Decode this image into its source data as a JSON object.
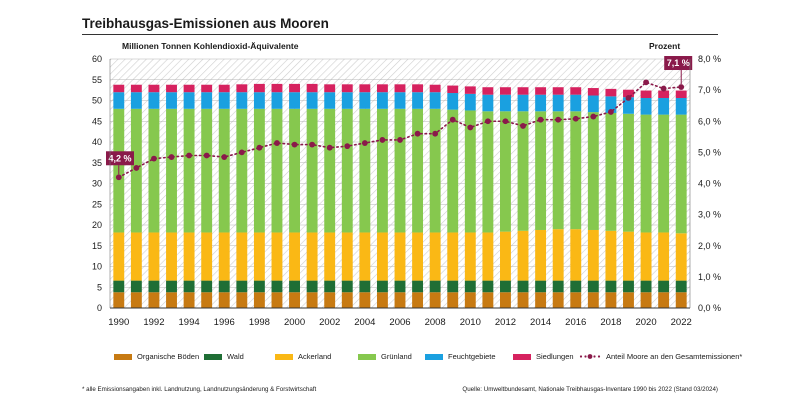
{
  "title": "Treibhausgas-Emissionen aus Mooren",
  "chart_data": {
    "type": "bar",
    "stacked": true,
    "y_left_label": "Millionen Tonnen Kohlendioxid-Äquivalente",
    "y_right_label": "Prozent",
    "ylim_left": [
      0,
      60
    ],
    "yticks_left": [
      "0",
      "5",
      "10",
      "15",
      "20",
      "25",
      "30",
      "35",
      "40",
      "45",
      "50",
      "55",
      "60"
    ],
    "ylim_right": [
      0,
      8
    ],
    "yticks_right": [
      "0,0 %",
      "1,0 %",
      "2,0 %",
      "3,0 %",
      "4,0 %",
      "5,0 %",
      "6,0 %",
      "7,0 %",
      "8,0 %"
    ],
    "years": [
      1990,
      1991,
      1992,
      1993,
      1994,
      1995,
      1996,
      1997,
      1998,
      1999,
      2000,
      2001,
      2002,
      2003,
      2004,
      2005,
      2006,
      2007,
      2008,
      2009,
      2010,
      2011,
      2012,
      2013,
      2014,
      2015,
      2016,
      2017,
      2018,
      2019,
      2020,
      2021,
      2022
    ],
    "xtick_labels": [
      "1990",
      "1992",
      "1994",
      "1996",
      "1998",
      "2000",
      "2002",
      "2004",
      "2006",
      "2008",
      "2010",
      "2012",
      "2014",
      "2016",
      "2018",
      "2020",
      "2022"
    ],
    "series": [
      {
        "name": "Organische Böden",
        "color": "#c77a12",
        "values": [
          3.8,
          3.8,
          3.8,
          3.8,
          3.8,
          3.8,
          3.8,
          3.8,
          3.8,
          3.8,
          3.8,
          3.8,
          3.8,
          3.8,
          3.8,
          3.8,
          3.8,
          3.8,
          3.8,
          3.8,
          3.8,
          3.8,
          3.8,
          3.8,
          3.8,
          3.8,
          3.8,
          3.8,
          3.8,
          3.8,
          3.8,
          3.8,
          3.8
        ]
      },
      {
        "name": "Wald",
        "color": "#1f6e35",
        "values": [
          2.8,
          2.8,
          2.8,
          2.8,
          2.8,
          2.8,
          2.8,
          2.8,
          2.8,
          2.8,
          2.8,
          2.8,
          2.8,
          2.8,
          2.8,
          2.8,
          2.8,
          2.8,
          2.8,
          2.8,
          2.8,
          2.8,
          2.8,
          2.8,
          2.8,
          2.8,
          2.8,
          2.8,
          2.8,
          2.8,
          2.8,
          2.8,
          2.8
        ]
      },
      {
        "name": "Ackerland",
        "color": "#fab815",
        "values": [
          11.6,
          11.6,
          11.6,
          11.6,
          11.6,
          11.6,
          11.6,
          11.6,
          11.6,
          11.6,
          11.6,
          11.6,
          11.6,
          11.6,
          11.6,
          11.6,
          11.6,
          11.6,
          11.6,
          11.6,
          11.6,
          11.6,
          11.8,
          12.0,
          12.2,
          12.4,
          12.4,
          12.2,
          12.0,
          11.8,
          11.6,
          11.6,
          11.4
        ]
      },
      {
        "name": "Grünland",
        "color": "#86c84e",
        "values": [
          29.8,
          29.8,
          29.8,
          29.8,
          29.8,
          29.8,
          29.8,
          29.8,
          29.8,
          29.8,
          29.8,
          29.8,
          29.8,
          29.8,
          29.8,
          29.8,
          29.8,
          29.8,
          29.8,
          29.6,
          29.4,
          29.2,
          29.0,
          28.8,
          28.6,
          28.4,
          28.4,
          28.4,
          28.4,
          28.4,
          28.4,
          28.4,
          28.6
        ]
      },
      {
        "name": "Feuchtgebiete",
        "color": "#1aa0e0",
        "values": [
          4.0,
          4.0,
          4.0,
          4.0,
          4.0,
          4.0,
          4.0,
          4.0,
          4.0,
          4.0,
          4.0,
          4.0,
          4.0,
          4.0,
          4.0,
          4.0,
          4.0,
          4.0,
          4.0,
          4.0,
          4.0,
          4.0,
          4.0,
          4.0,
          4.0,
          4.0,
          4.0,
          4.0,
          4.0,
          4.0,
          4.0,
          4.0,
          4.0
        ]
      },
      {
        "name": "Siedlungen",
        "color": "#d6225f",
        "values": [
          1.8,
          1.8,
          1.8,
          1.8,
          1.8,
          1.8,
          1.8,
          1.9,
          2.0,
          2.0,
          2.0,
          2.0,
          1.9,
          1.9,
          1.9,
          1.9,
          1.9,
          1.9,
          1.8,
          1.8,
          1.8,
          1.8,
          1.8,
          1.8,
          1.8,
          1.8,
          1.8,
          1.8,
          1.8,
          1.8,
          1.8,
          1.8,
          1.8
        ]
      }
    ],
    "line": {
      "name": "Anteil Moore an den Gesamtemissionen*",
      "color": "#8a1a4a",
      "axis": "right",
      "values": [
        4.2,
        4.5,
        4.8,
        4.85,
        4.9,
        4.9,
        4.85,
        5.0,
        5.15,
        5.3,
        5.25,
        5.25,
        5.15,
        5.2,
        5.3,
        5.4,
        5.4,
        5.6,
        5.6,
        6.05,
        5.8,
        6.0,
        6.0,
        5.85,
        6.05,
        6.05,
        6.08,
        6.15,
        6.3,
        6.75,
        7.25,
        7.05,
        7.1
      ]
    },
    "annotations": [
      {
        "text": "4,2 %",
        "year": 1990,
        "value": 4.2
      },
      {
        "text": "7,1 %",
        "year": 2022,
        "value": 7.1
      }
    ]
  },
  "legend_label_line": "Anteil Moore an den Gesamtemissionen*",
  "footnote": "* alle Emissionsangaben inkl. Landnutzung, Landnutzungsänderung & Forstwirtschaft",
  "source": "Quelle: Umweltbundesamt, Nationale Treibhausgas-Inventare 1990 bis 2022 (Stand 03/2024)"
}
